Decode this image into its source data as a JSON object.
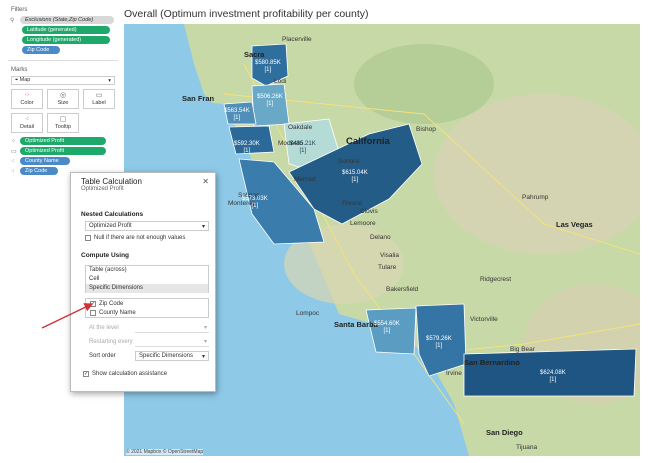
{
  "sidebar": {
    "filters_title": "Filters",
    "filters": [
      {
        "label": "Exclusions (State,Zip Code)",
        "style": "gray"
      },
      {
        "label": "Latitude (generated)",
        "style": "green"
      },
      {
        "label": "Longitude (generated)",
        "style": "green"
      },
      {
        "label": "Zip Code",
        "style": "blue"
      }
    ],
    "marks_title": "Marks",
    "mark_type": "Map",
    "mark_buttons": [
      {
        "label": "Color",
        "icon": "color-dots-icon"
      },
      {
        "label": "Size",
        "icon": "size-icon"
      },
      {
        "label": "Label",
        "icon": "label-icon"
      },
      {
        "label": "Detail",
        "icon": "detail-icon"
      },
      {
        "label": "Tooltip",
        "icon": "tooltip-icon"
      }
    ],
    "mark_fields": [
      {
        "label": "Optimized Profit",
        "style": "green"
      },
      {
        "label": "Optimized Profit",
        "style": "green"
      },
      {
        "label": "County Name",
        "style": "blue"
      },
      {
        "label": "Zip Code",
        "style": "blue"
      }
    ],
    "colors": {
      "green": "#1ea86a",
      "blue": "#4a8bc7"
    }
  },
  "view": {
    "title": "Overall (Optimum investment profitability per county)",
    "attribution": "© 2021 Mapbox © OpenStreetMap",
    "cities": [
      {
        "name": "Placerville"
      },
      {
        "name": "Sacra"
      },
      {
        "name": "San Fran"
      },
      {
        "name": "California"
      },
      {
        "name": "Bishop"
      },
      {
        "name": "Delano"
      },
      {
        "name": "Bakersfield"
      },
      {
        "name": "Ridgecrest"
      },
      {
        "name": "Las Vegas"
      },
      {
        "name": "Santa Barba"
      },
      {
        "name": "Victorville"
      },
      {
        "name": "San Bernardino"
      },
      {
        "name": "San Diego"
      },
      {
        "name": "Tijuana"
      },
      {
        "name": "Lompoc"
      },
      {
        "name": "Irvine"
      },
      {
        "name": "Fresno"
      },
      {
        "name": "Merced"
      },
      {
        "name": "Modesto"
      },
      {
        "name": "Visalia"
      },
      {
        "name": "Tulare"
      },
      {
        "name": "Sonora"
      },
      {
        "name": "Monterey"
      },
      {
        "name": "Salinas"
      },
      {
        "name": "Lodi"
      },
      {
        "name": "Oakdale"
      },
      {
        "name": "Lemoore"
      },
      {
        "name": "Clovis"
      },
      {
        "name": "Big Bear"
      },
      {
        "name": "Pahrump"
      }
    ],
    "counties": [
      {
        "value": "$580.85K",
        "rank": "[1]",
        "color": "#2e6f9e"
      },
      {
        "value": "$506.26K",
        "rank": "[1]",
        "color": "#6aa8c8"
      },
      {
        "value": "$563.54K",
        "rank": "[1]",
        "color": "#4f8fb9"
      },
      {
        "value": "$592.30K",
        "rank": "[1]",
        "color": "#2b6a98"
      },
      {
        "value": "$485.21K",
        "rank": "[1]",
        "color": "#b5dbd6"
      },
      {
        "value": "$615.04K",
        "rank": "[1]",
        "color": "#245c88"
      },
      {
        "value": "$573.03K",
        "rank": "[1]",
        "color": "#3a7cab"
      },
      {
        "value": "$554.60K",
        "rank": "[1]",
        "color": "#5b9cc2"
      },
      {
        "value": "$579.26K",
        "rank": "[1]",
        "color": "#3475a5"
      },
      {
        "value": "$624.08K",
        "rank": "[1]",
        "color": "#1f5583"
      }
    ]
  },
  "dialog": {
    "title": "Table Calculation",
    "subtitle": "Optimized Profit",
    "nested_heading": "Nested Calculations",
    "nested_value": "Optimized Profit",
    "null_label": "Null if there are not enough values",
    "compute_heading": "Compute Using",
    "compute_options": [
      "Table (across)",
      "Cell",
      "Specific Dimensions"
    ],
    "dimensions": [
      {
        "label": "Zip Code",
        "checked": true
      },
      {
        "label": "County Name",
        "checked": false
      }
    ],
    "at_level_label": "At the level",
    "restarting_label": "Restarting every",
    "sort_label": "Sort order",
    "sort_value": "Specific Dimensions",
    "assist_label": "Show calculation assistance",
    "arrow_color": "#d0333a"
  }
}
